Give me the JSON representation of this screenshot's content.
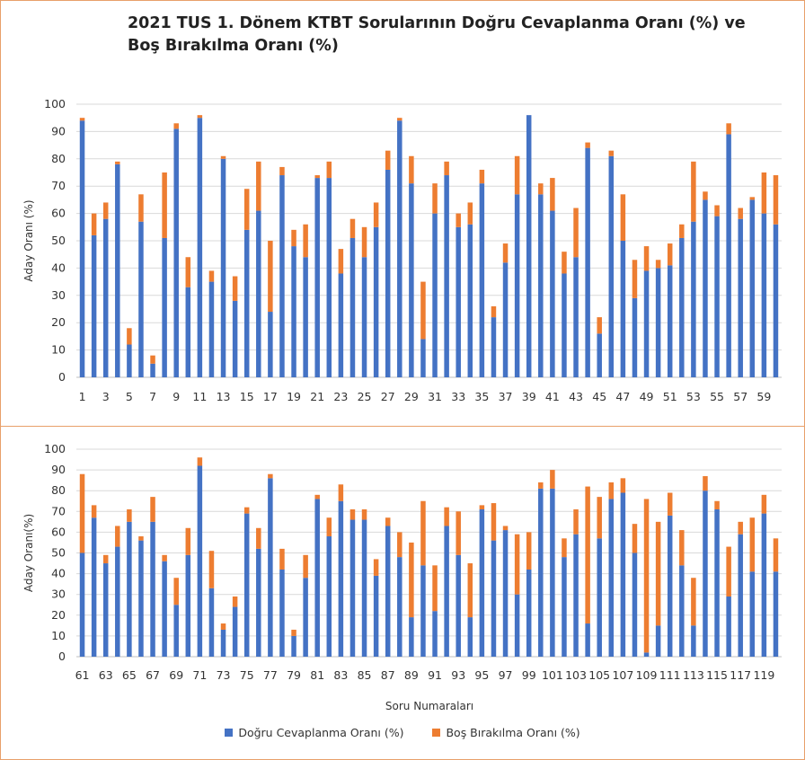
{
  "title": "2021 TUS 1. Dönem KTBT Sorularının Doğru Cevaplanma Oranı (%) ve Boş Bırakılma Oranı (%)",
  "colors": {
    "correct": "#4472c4",
    "empty": "#ed7d31",
    "grid": "#d9d9d9"
  },
  "legend": {
    "correct": "Doğru Cevaplanma Oranı (%)",
    "empty": "Boş Bırakılma Oranı (%)"
  },
  "xlabel": "Soru Numaraları",
  "chart_data": [
    {
      "type": "bar",
      "stacked": true,
      "ylabel": "Aday  Oranı (%)",
      "ylim": [
        0,
        100
      ],
      "ytick_step": 10,
      "categories": [
        1,
        2,
        3,
        4,
        5,
        6,
        7,
        8,
        9,
        10,
        11,
        12,
        13,
        14,
        15,
        16,
        17,
        18,
        19,
        20,
        21,
        22,
        23,
        24,
        25,
        26,
        27,
        28,
        29,
        30,
        31,
        32,
        33,
        34,
        35,
        36,
        37,
        38,
        39,
        40,
        41,
        42,
        43,
        44,
        45,
        46,
        47,
        48,
        49,
        50,
        51,
        52,
        53,
        54,
        55,
        56,
        57,
        58,
        59,
        60
      ],
      "tick_labels": [
        "1",
        "3",
        "5",
        "7",
        "9",
        "11",
        "13",
        "15",
        "17",
        "19",
        "21",
        "23",
        "25",
        "27",
        "29",
        "31",
        "33",
        "35",
        "37",
        "39",
        "41",
        "43",
        "45",
        "47",
        "49",
        "51",
        "53",
        "55",
        "57",
        "59"
      ],
      "series": [
        {
          "name": "Doğru Cevaplanma Oranı (%)",
          "values": [
            94,
            52,
            58,
            78,
            12,
            57,
            5,
            51,
            91,
            33,
            95,
            35,
            80,
            28,
            54,
            61,
            24,
            74,
            48,
            44,
            73,
            73,
            38,
            51,
            44,
            55,
            76,
            94,
            71,
            14,
            60,
            74,
            55,
            56,
            71,
            22,
            42,
            67,
            96,
            67,
            61,
            38,
            44,
            84,
            16,
            81,
            50,
            29,
            39,
            40,
            41,
            51,
            57,
            65,
            59,
            89,
            58,
            65,
            60,
            56
          ]
        },
        {
          "name": "Boş Bırakılma Oranı (%)",
          "values": [
            1,
            8,
            6,
            1,
            6,
            10,
            3,
            24,
            2,
            11,
            1,
            4,
            1,
            9,
            15,
            18,
            26,
            3,
            6,
            12,
            1,
            6,
            9,
            7,
            11,
            9,
            7,
            1,
            10,
            21,
            11,
            5,
            5,
            8,
            5,
            4,
            7,
            14,
            0,
            4,
            12,
            8,
            18,
            2,
            6,
            2,
            17,
            14,
            9,
            3,
            8,
            5,
            22,
            3,
            4,
            4,
            4,
            1,
            15,
            18
          ]
        }
      ]
    },
    {
      "type": "bar",
      "stacked": true,
      "ylabel": "Aday Oranı(%)",
      "ylim": [
        0,
        100
      ],
      "ytick_step": 10,
      "categories": [
        61,
        62,
        63,
        64,
        65,
        66,
        67,
        68,
        69,
        70,
        71,
        72,
        73,
        74,
        75,
        76,
        77,
        78,
        79,
        80,
        81,
        82,
        83,
        84,
        85,
        86,
        87,
        88,
        89,
        90,
        91,
        92,
        93,
        94,
        95,
        96,
        97,
        98,
        99,
        100,
        101,
        102,
        103,
        104,
        105,
        106,
        107,
        108,
        109,
        110,
        111,
        112,
        113,
        114,
        115,
        116,
        117,
        118,
        119,
        120
      ],
      "tick_labels": [
        "61",
        "63",
        "65",
        "67",
        "69",
        "71",
        "73",
        "75",
        "77",
        "79",
        "81",
        "83",
        "85",
        "87",
        "89",
        "91",
        "93",
        "95",
        "97",
        "99",
        "101",
        "103",
        "105",
        "107",
        "109",
        "111",
        "113",
        "115",
        "117",
        "119"
      ],
      "series": [
        {
          "name": "Doğru Cevaplanma Oranı (%)",
          "values": [
            50,
            67,
            45,
            53,
            65,
            56,
            65,
            46,
            25,
            49,
            92,
            33,
            13,
            24,
            69,
            52,
            86,
            42,
            10,
            38,
            76,
            58,
            75,
            66,
            66,
            39,
            63,
            48,
            19,
            44,
            22,
            63,
            49,
            19,
            71,
            56,
            61,
            30,
            42,
            81,
            81,
            48,
            59,
            16,
            57,
            76,
            79,
            50,
            2,
            15,
            68,
            44,
            15,
            80,
            71,
            29,
            59,
            41,
            69,
            41
          ]
        },
        {
          "name": "Boş Bırakılma Oranı (%)",
          "values": [
            38,
            6,
            4,
            10,
            6,
            2,
            12,
            3,
            13,
            13,
            4,
            18,
            3,
            5,
            3,
            10,
            2,
            10,
            3,
            11,
            2,
            9,
            8,
            5,
            5,
            8,
            4,
            12,
            36,
            31,
            22,
            9,
            21,
            26,
            2,
            18,
            2,
            29,
            18,
            3,
            9,
            9,
            12,
            66,
            20,
            8,
            7,
            14,
            74,
            50,
            11,
            17,
            23,
            7,
            4,
            24,
            6,
            26,
            9,
            16
          ]
        }
      ]
    }
  ]
}
